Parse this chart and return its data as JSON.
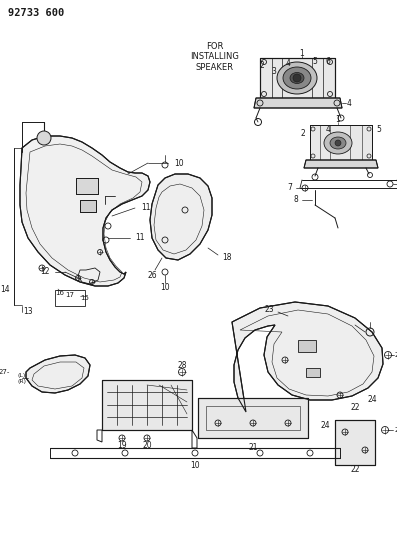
{
  "title": "92733 600",
  "bg_color": "#ffffff",
  "line_color": "#1a1a1a",
  "text_color": "#1a1a1a",
  "speaker_label": "FOR\nINSTALLING\nSPEAKER",
  "figsize": [
    3.97,
    5.33
  ],
  "dpi": 100
}
